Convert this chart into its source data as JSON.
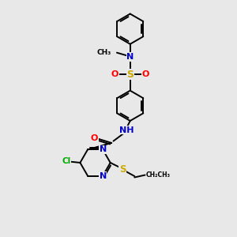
{
  "bg_color": "#e8e8e8",
  "bond_color": "#000000",
  "N_color": "#0000cc",
  "O_color": "#ff0000",
  "S_color": "#ccaa00",
  "Cl_color": "#00aa00",
  "lw": 1.4,
  "fig_w": 3.0,
  "fig_h": 3.0,
  "dpi": 100,
  "xlim": [
    0,
    10
  ],
  "ylim": [
    0,
    10
  ]
}
